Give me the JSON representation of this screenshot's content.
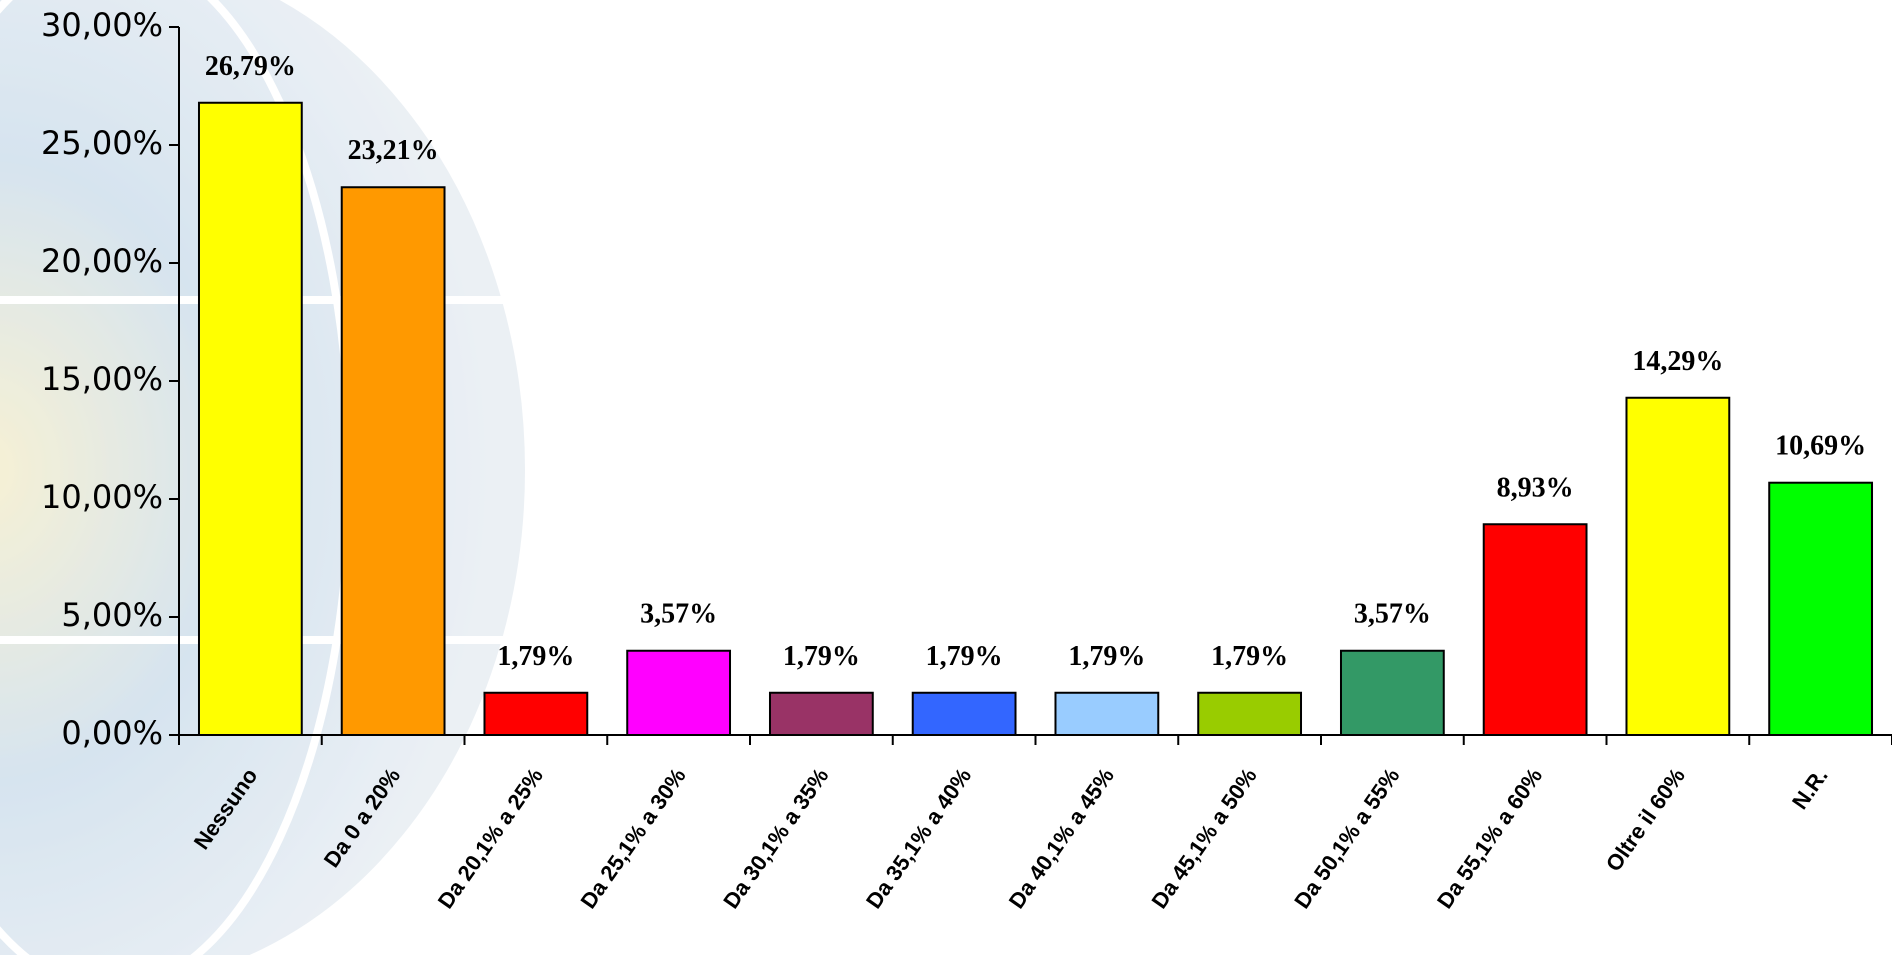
{
  "chart_data": {
    "type": "bar",
    "categories": [
      "Nessuno",
      "Da 0 a 20%",
      "Da 20,1% a 25%",
      "Da 25,1% a 30%",
      "Da 30,1% a 35%",
      "Da 35,1% a 40%",
      "Da 40,1% a 45%",
      "Da 45,1% a 50%",
      "Da 50,1% a 55%",
      "Da 55,1% a 60%",
      "Oltre il 60%",
      "N.R."
    ],
    "values": [
      26.79,
      23.21,
      1.79,
      3.57,
      1.79,
      1.79,
      1.79,
      1.79,
      3.57,
      8.93,
      14.29,
      10.69
    ],
    "value_labels": [
      "26,79%",
      "23,21%",
      "1,79%",
      "3,57%",
      "1,79%",
      "1,79%",
      "1,79%",
      "1,79%",
      "3,57%",
      "8,93%",
      "14,29%",
      "10,69%"
    ],
    "colors": [
      "#ffff00",
      "#ff9900",
      "#ff0000",
      "#ff00ff",
      "#993366",
      "#3366ff",
      "#99ccff",
      "#99cc00",
      "#339966",
      "#ff0000",
      "#ffff00",
      "#00ff00"
    ],
    "ylim": [
      0,
      30
    ],
    "yticks": [
      {
        "value": 0,
        "label": "0,00%"
      },
      {
        "value": 5,
        "label": "5,00%"
      },
      {
        "value": 10,
        "label": "10,00%"
      },
      {
        "value": 15,
        "label": "15,00%"
      },
      {
        "value": 20,
        "label": "20,00%"
      },
      {
        "value": 25,
        "label": "25,00%"
      },
      {
        "value": 30,
        "label": "30,00%"
      }
    ],
    "grid": false
  }
}
